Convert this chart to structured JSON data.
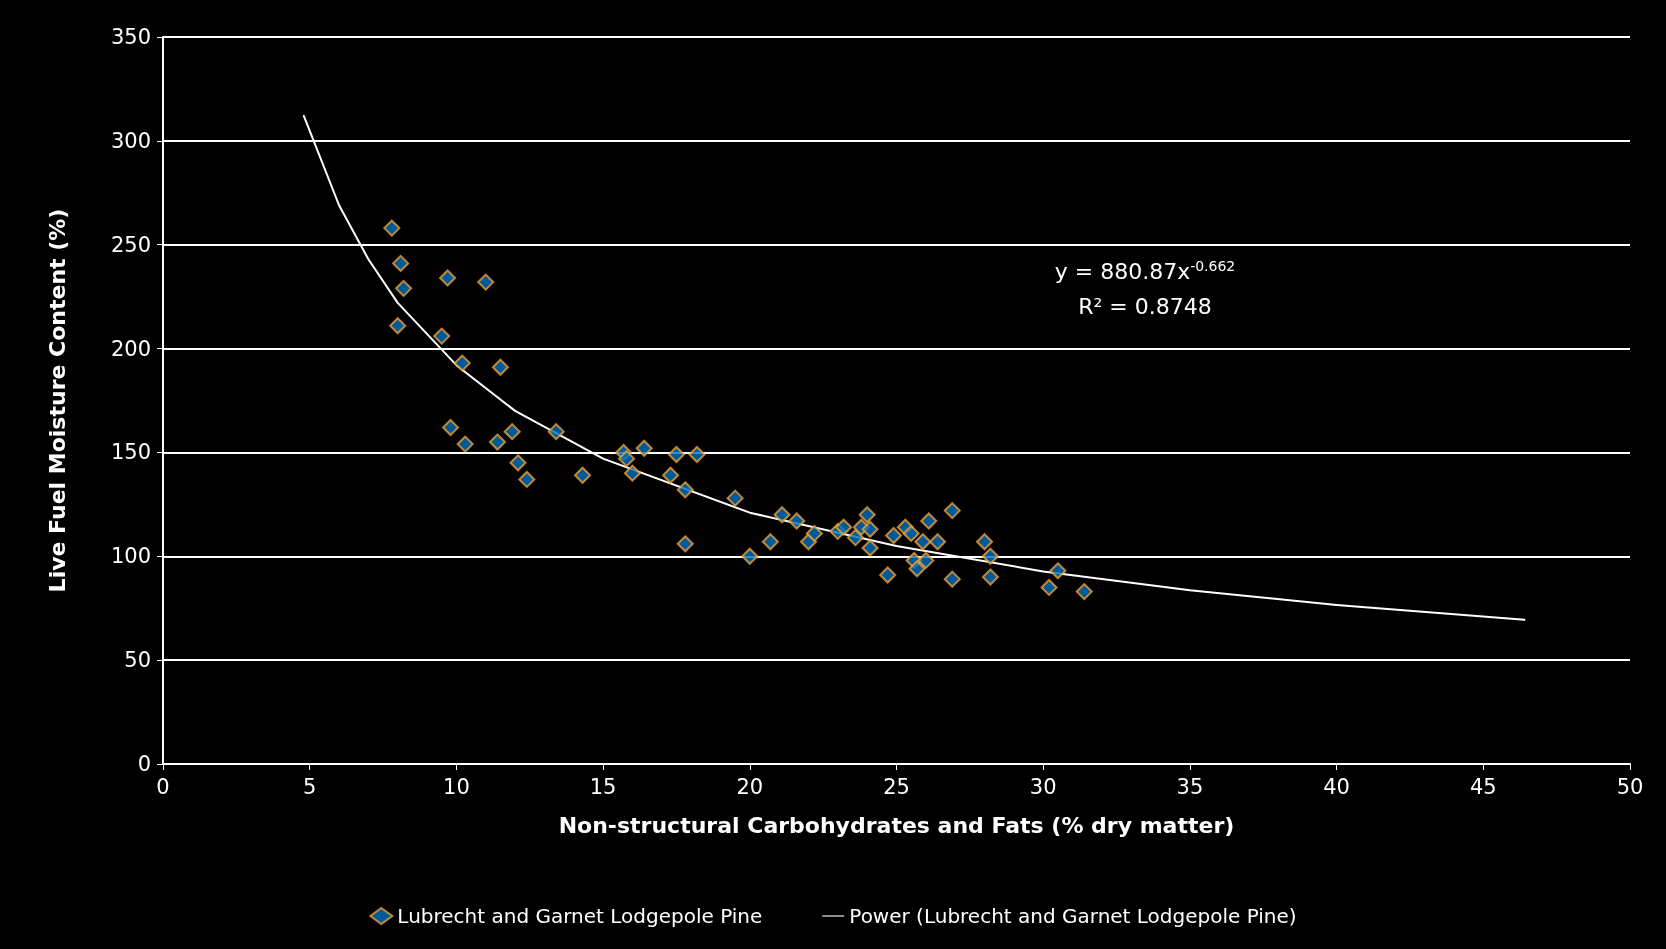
{
  "chart_data": {
    "type": "scatter",
    "xlabel": "Non-structural Carbohydrates and Fats (% dry matter)",
    "ylabel": "Live Fuel Moisture Content (%)",
    "xlim": [
      0,
      50
    ],
    "xticks": [
      0,
      5,
      10,
      15,
      20,
      25,
      30,
      35,
      40,
      45,
      50
    ],
    "ylim": [
      0,
      350
    ],
    "yticks": [
      0,
      50,
      100,
      150,
      200,
      250,
      300,
      350
    ],
    "grid": "y",
    "legend": "bottom",
    "marker": "diamond",
    "annotations": [
      "y = 880.87x$^{-0.662}$",
      "R² = 0.8748"
    ],
    "series": [
      {
        "name": "Lubrecht and Garnet Lodgepole Pine",
        "color": "#0070c0",
        "x": [
          7.8,
          8.1,
          8.2,
          8.0,
          9.7,
          11.0,
          9.5,
          10.2,
          11.5,
          9.8,
          10.3,
          11.4,
          11.9,
          12.1,
          12.4,
          13.4,
          14.3,
          15.7,
          15.8,
          16.0,
          16.4,
          17.5,
          17.3,
          17.8,
          18.2,
          17.8,
          19.5,
          20.0,
          20.7,
          21.1,
          21.6,
          22.0,
          22.2,
          23.0,
          23.2,
          23.6,
          23.8,
          24.0,
          24.1,
          24.1,
          24.7,
          24.9,
          25.3,
          25.5,
          25.6,
          25.7,
          25.9,
          26.0,
          26.1,
          26.4,
          26.9,
          26.9,
          28.0,
          28.2,
          28.2,
          30.2,
          30.5,
          31.4
        ],
        "values": [
          258,
          241,
          229,
          211,
          234,
          232,
          206,
          193,
          191,
          162,
          154,
          155,
          160,
          145,
          137,
          160,
          139,
          150,
          147,
          140,
          152,
          149,
          139,
          132,
          149,
          106,
          128,
          100,
          107,
          120,
          117,
          107,
          111,
          112,
          114,
          109,
          114,
          120,
          113,
          104,
          91,
          110,
          114,
          111,
          98,
          94,
          107,
          98,
          117,
          107,
          122,
          89,
          107,
          100,
          90,
          85,
          93,
          83
        ]
      },
      {
        "name": "Power (Lubrecht and Garnet Lodgepole Pine)",
        "type": "line",
        "color": "#ffffff",
        "line_style": "solid",
        "marker": "none",
        "x": [
          4.8,
          6,
          7,
          8,
          10,
          12,
          15,
          20,
          25,
          30,
          35,
          40,
          46.4
        ],
        "values": [
          312,
          269,
          243,
          222,
          192,
          170,
          147,
          121,
          105,
          92.7,
          83.7,
          76.6,
          69.4
        ]
      }
    ]
  }
}
